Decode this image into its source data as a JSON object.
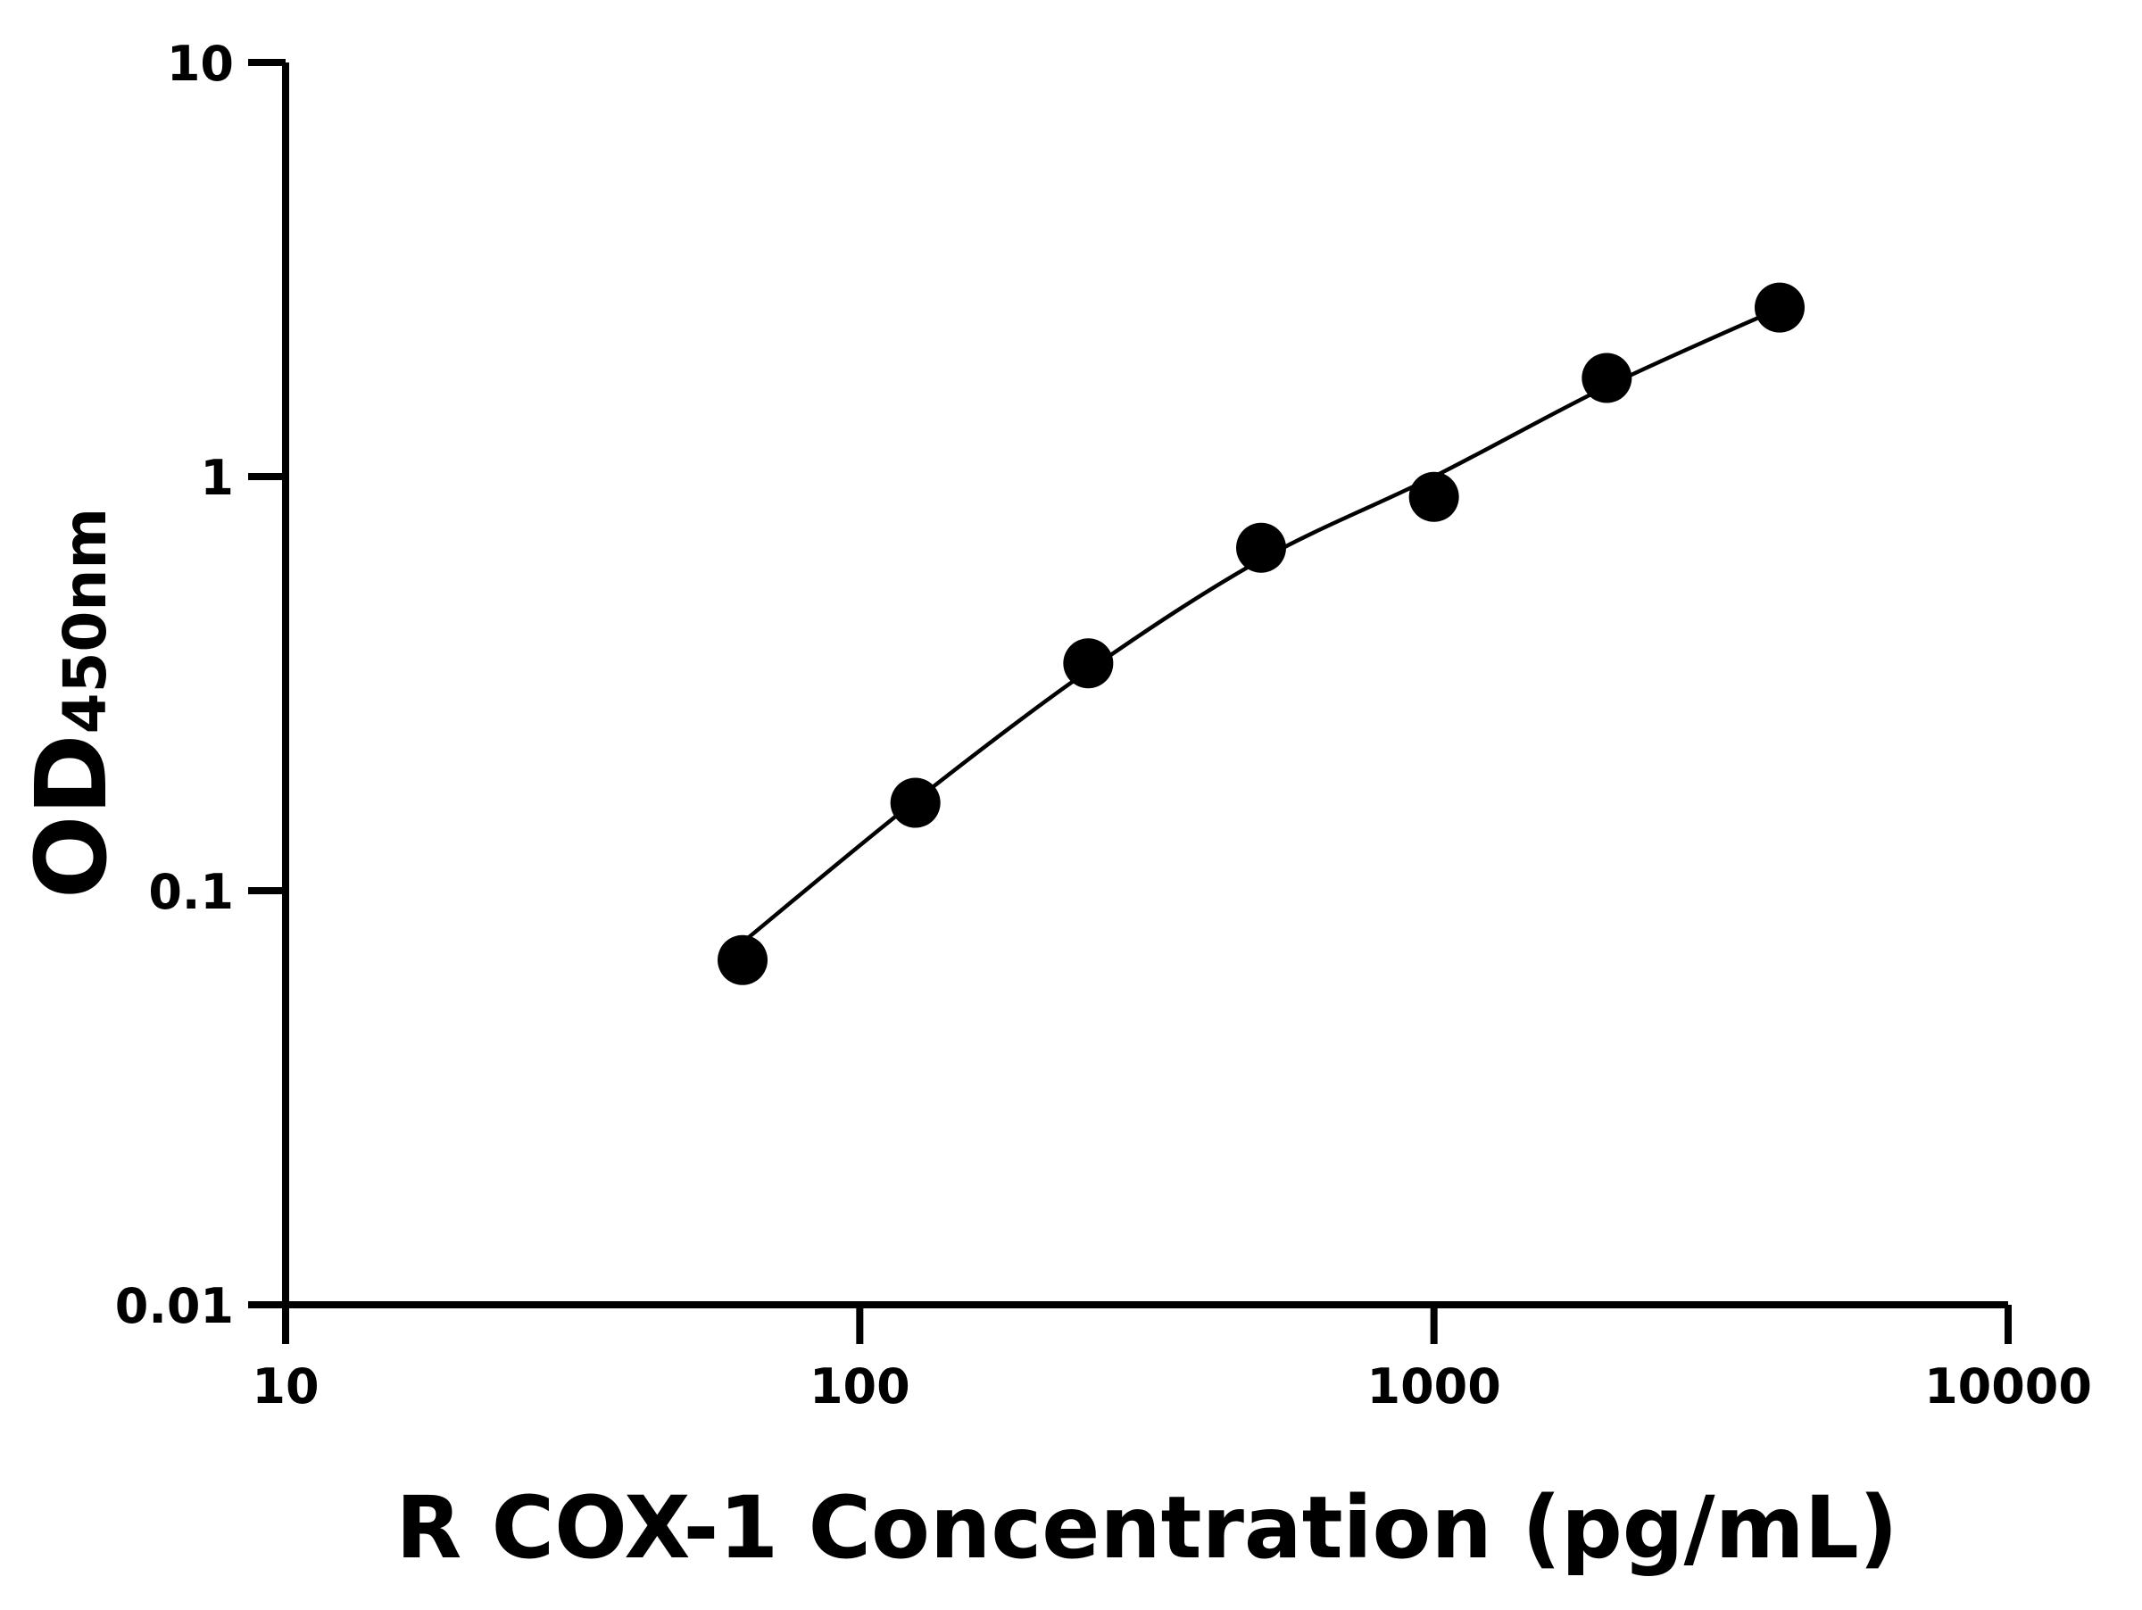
{
  "chart_data": {
    "type": "scatter",
    "title": "",
    "xlabel": "R COX-1 Concentration (pg/mL)",
    "ylabel": "OD",
    "ylabel_subscript": "450nm",
    "x_scale": "log",
    "y_scale": "log",
    "xlim": [
      10,
      10000
    ],
    "ylim": [
      0.01,
      10
    ],
    "x_ticks": [
      10,
      100,
      1000,
      10000
    ],
    "x_tick_labels": [
      "10",
      "100",
      "1000",
      "10000"
    ],
    "y_ticks": [
      0.01,
      0.1,
      1,
      10
    ],
    "y_tick_labels": [
      "0.01",
      "0.1",
      "1",
      "10"
    ],
    "grid": false,
    "legend": "none",
    "series": [
      {
        "x": [
          62.5,
          125,
          250,
          500,
          1000,
          2000,
          4000
        ],
        "y": [
          0.068,
          0.163,
          0.354,
          0.673,
          0.893,
          1.73,
          2.56
        ],
        "marker": "circle",
        "color": "#000000"
      }
    ],
    "fit_curve": {
      "x": [
        62.5,
        125,
        250,
        500,
        1000,
        2000,
        4000
      ],
      "y": [
        0.075,
        0.165,
        0.34,
        0.63,
        1.0,
        1.65,
        2.55
      ],
      "color": "#000000"
    }
  }
}
